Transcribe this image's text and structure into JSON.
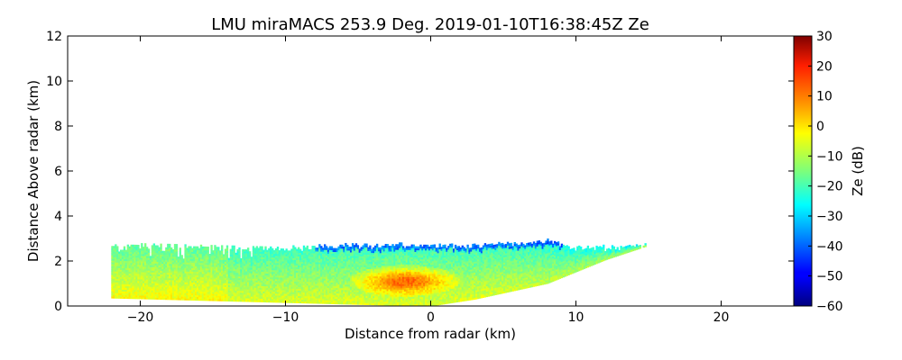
{
  "chart_data": {
    "type": "heatmap",
    "title": "LMU miraMACS 253.9 Deg. 2019-01-10T16:38:45Z  Ze",
    "xlabel": "Distance from radar (km)",
    "ylabel": "Distance Above radar  (km)",
    "xlim": [
      -25,
      25
    ],
    "ylim": [
      0,
      12
    ],
    "x_ticks": [
      -20,
      -10,
      0,
      10,
      20
    ],
    "x_tick_labels": [
      "−20",
      "−10",
      "0",
      "10",
      "20"
    ],
    "y_ticks": [
      0,
      2,
      4,
      6,
      8,
      10,
      12
    ],
    "y_tick_labels": [
      "0",
      "2",
      "4",
      "6",
      "8",
      "10",
      "12"
    ],
    "colorbar": {
      "label": "Ze (dB)",
      "range": [
        -60,
        30
      ],
      "colormap": "jet",
      "ticks": [
        30,
        20,
        10,
        0,
        -10,
        -20,
        -30,
        -40,
        -50,
        -60
      ],
      "tick_labels": [
        "30",
        "20",
        "10",
        "0",
        "−10",
        "−20",
        "−30",
        "−40",
        "−50",
        "−60"
      ]
    },
    "echo_region": {
      "description_units": "km",
      "x_extent": [
        -22,
        14.8
      ],
      "cloud_top_km_approx": 2.6,
      "upper_edge": [
        [
          -22,
          2.7
        ],
        [
          -16,
          2.6
        ],
        [
          -10,
          2.5
        ],
        [
          -6,
          2.65
        ],
        [
          0,
          2.65
        ],
        [
          3,
          2.6
        ],
        [
          6,
          2.75
        ],
        [
          8,
          2.85
        ],
        [
          10,
          2.5
        ],
        [
          12,
          2.55
        ],
        [
          14.8,
          2.65
        ]
      ],
      "lower_edge": [
        [
          -22,
          0.35
        ],
        [
          -10,
          0.15
        ],
        [
          -4,
          0.05
        ],
        [
          0,
          0.0
        ],
        [
          3,
          0.3
        ],
        [
          8,
          1.0
        ],
        [
          12,
          2.05
        ],
        [
          14.8,
          2.65
        ]
      ],
      "core": {
        "x_center": -1.8,
        "y_center": 1.1,
        "ze_max_db": 15
      },
      "typical_ze_db": [
        -15,
        -5
      ]
    }
  }
}
